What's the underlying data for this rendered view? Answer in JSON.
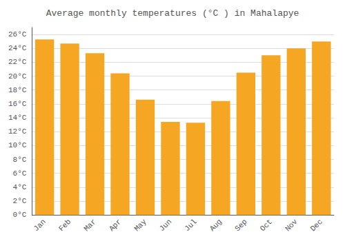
{
  "chart_data": {
    "type": "bar",
    "title": "Average monthly temperatures (°C ) in Mahalapye",
    "categories": [
      "Jan",
      "Feb",
      "Mar",
      "Apr",
      "May",
      "Jun",
      "Jul",
      "Aug",
      "Sep",
      "Oct",
      "Nov",
      "Dec"
    ],
    "values": [
      25.3,
      24.7,
      23.3,
      20.4,
      16.6,
      13.4,
      13.3,
      16.4,
      20.5,
      23.0,
      24.0,
      25.0
    ],
    "color": "#F5A623",
    "ylim": [
      0,
      27
    ],
    "yticks": [
      {
        "value": 0,
        "label": "0°C"
      },
      {
        "value": 2,
        "label": "2°C"
      },
      {
        "value": 4,
        "label": "4°C"
      },
      {
        "value": 6,
        "label": "6°C"
      },
      {
        "value": 8,
        "label": "8°C"
      },
      {
        "value": 10,
        "label": "10°C"
      },
      {
        "value": 12,
        "label": "12°C"
      },
      {
        "value": 14,
        "label": "14°C"
      },
      {
        "value": 16,
        "label": "16°C"
      },
      {
        "value": 18,
        "label": "18°C"
      },
      {
        "value": 20,
        "label": "20°C"
      },
      {
        "value": 22,
        "label": "22°C"
      },
      {
        "value": 24,
        "label": "24°C"
      },
      {
        "value": 26,
        "label": "26°C"
      }
    ],
    "grid": true
  }
}
